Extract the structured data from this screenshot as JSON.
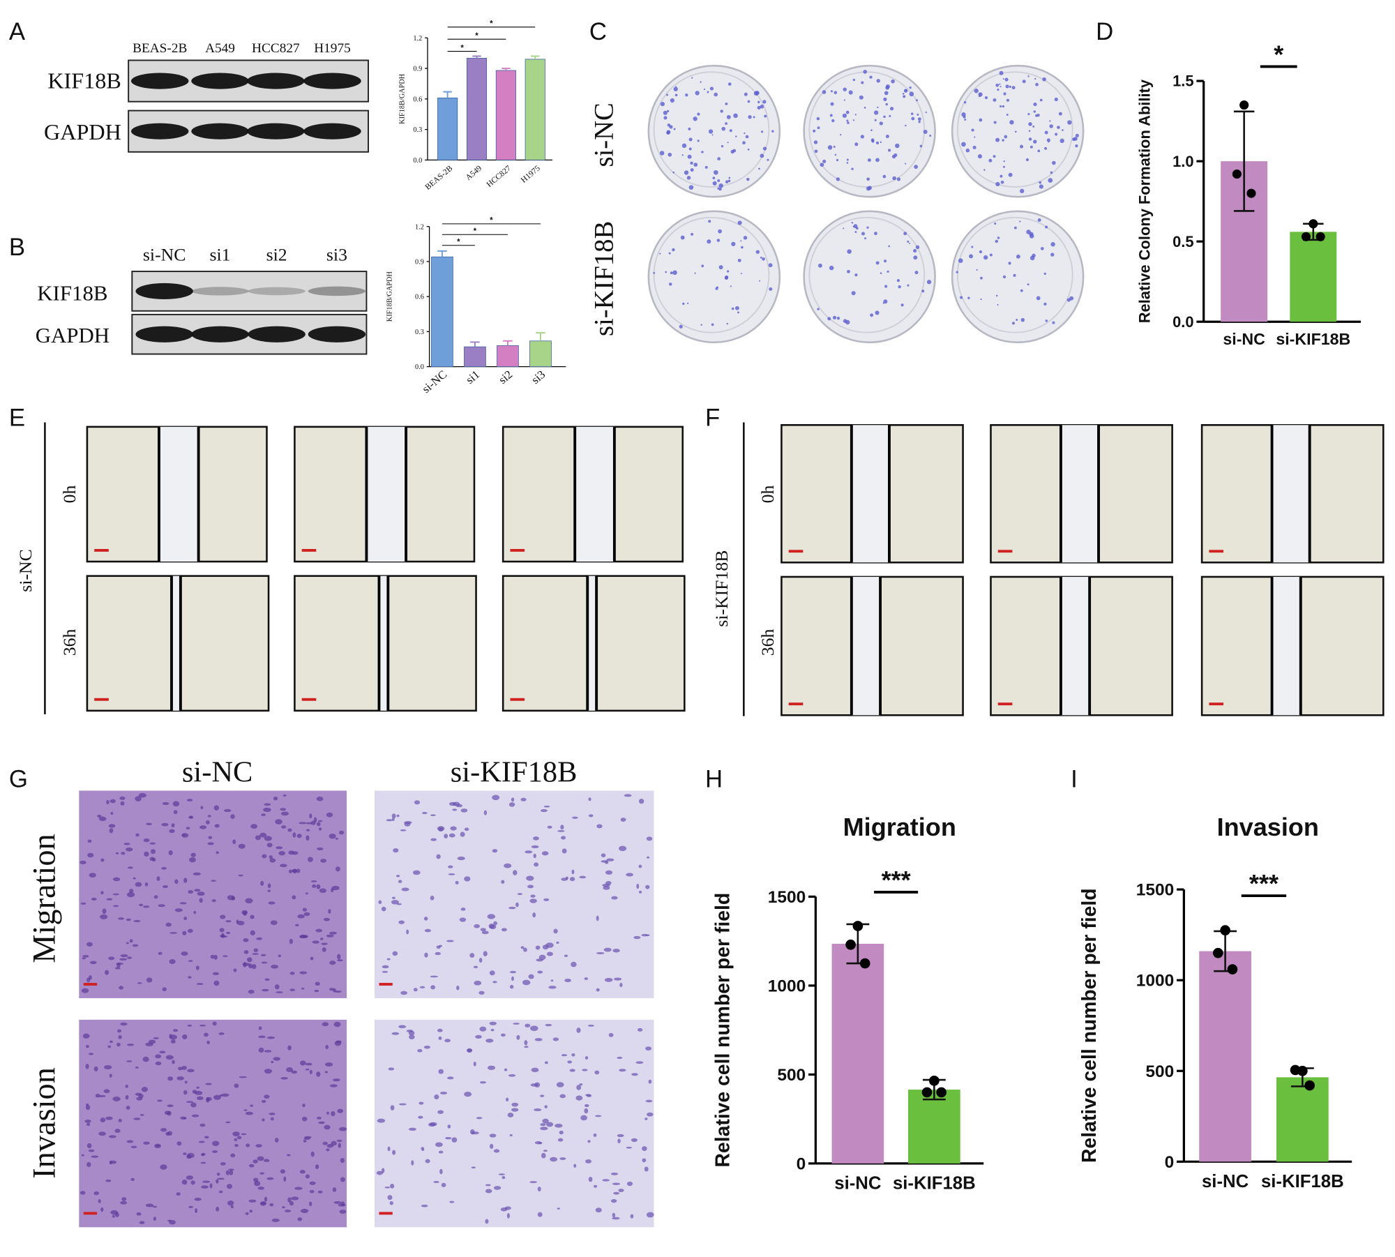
{
  "chart_data": [
    {
      "type": "bar",
      "categories": [
        "BEAS-2B",
        "A549",
        "HCC827",
        "H1975"
      ],
      "values": [
        0.61,
        1.0,
        0.88,
        0.99
      ],
      "errors": [
        0.06,
        0.02,
        0.02,
        0.03
      ],
      "colors": [
        "#6f9fd8",
        "#9b7fc4",
        "#d47fc2",
        "#a8d48a"
      ],
      "ylabel": "KIF18B/GAPDH",
      "ylim": [
        0,
        1.2
      ],
      "yticks": [
        {
          "value": 0,
          "label": "0.0"
        },
        0.3,
        0.6,
        0.9,
        1.2
      ],
      "annotations": [
        "*",
        "*",
        "*"
      ]
    },
    {
      "type": "bar",
      "categories": [
        "si-NC",
        "si1",
        "si2",
        "si3"
      ],
      "values": [
        0.94,
        0.17,
        0.18,
        0.22
      ],
      "errors": [
        0.05,
        0.04,
        0.04,
        0.07
      ],
      "colors": [
        "#6f9fd8",
        "#9b7fc4",
        "#d47fc2",
        "#a8d48a"
      ],
      "ylabel": "KIF18B/GAPDH",
      "ylim": [
        0,
        1.2
      ],
      "yticks": [
        {
          "value": 0,
          "label": "0.0"
        },
        0.3,
        0.6,
        0.9,
        1.2
      ],
      "annotations": [
        "*",
        "*",
        "*"
      ]
    },
    {
      "type": "bar",
      "categories": [
        "si-NC",
        "si-KIF18B"
      ],
      "values": [
        1.0,
        0.56
      ],
      "errors": [
        0.31,
        0.05
      ],
      "points": [
        [
          1.35,
          0.92,
          0.8
        ],
        [
          0.61,
          0.53,
          0.53
        ]
      ],
      "colors": [
        "#c18ac0",
        "#6abf3f"
      ],
      "ylabel": "Relative Colony Formation Ability",
      "ylim": [
        0,
        1.5
      ],
      "yticks": [
        {
          "value": 0,
          "label": "0.0"
        },
        0.5,
        {
          "value": 1,
          "label": "1.0"
        },
        1.5
      ],
      "annotations": [
        "*"
      ]
    },
    {
      "type": "bar",
      "title": "Migration",
      "categories": [
        "si-NC",
        "si-KIF18B"
      ],
      "values": [
        1235,
        415
      ],
      "errors": [
        110,
        55
      ],
      "points": [
        [
          1335,
          1230,
          1125
        ],
        [
          465,
          400,
          400
        ]
      ],
      "colors": [
        "#c18ac0",
        "#6abf3f"
      ],
      "ylabel": "Relative cell number per field",
      "ylim": [
        0,
        1500
      ],
      "yticks": [
        0,
        500,
        1000,
        1500
      ],
      "annotations": [
        "***"
      ]
    },
    {
      "type": "bar",
      "title": "Invasion",
      "categories": [
        "si-NC",
        "si-KIF18B"
      ],
      "values": [
        1160,
        465
      ],
      "errors": [
        110,
        50
      ],
      "points": [
        [
          1275,
          1150,
          1060
        ],
        [
          500,
          505,
          420
        ]
      ],
      "colors": [
        "#c18ac0",
        "#6abf3f"
      ],
      "ylabel": "Relative cell number per field",
      "ylim": [
        0,
        1500
      ],
      "yticks": [
        0,
        500,
        1000,
        1500
      ],
      "annotations": [
        "***"
      ]
    }
  ],
  "panels": {
    "A": {
      "letter": "A",
      "lanes": [
        "BEAS-2B",
        "A549",
        "HCC827",
        "H1975"
      ],
      "rows": [
        "KIF18B",
        "GAPDH"
      ]
    },
    "B": {
      "letter": "B",
      "lanes": [
        "si-NC",
        "si1",
        "si2",
        "si3"
      ],
      "rows": [
        "KIF18B",
        "GAPDH"
      ]
    },
    "C": {
      "letter": "C",
      "rows": [
        "si-NC",
        "si-KIF18B"
      ]
    },
    "D": {
      "letter": "D"
    },
    "E": {
      "letter": "E",
      "group": "si-NC",
      "times": [
        "0h",
        "36h"
      ]
    },
    "F": {
      "letter": "F",
      "group": "si-KIF18B",
      "times": [
        "0h",
        "36h"
      ]
    },
    "G": {
      "letter": "G",
      "columns": [
        "si-NC",
        "si-KIF18B"
      ],
      "rows": [
        "Migration",
        "Invasion"
      ]
    },
    "H": {
      "letter": "H"
    },
    "I": {
      "letter": "I"
    }
  }
}
